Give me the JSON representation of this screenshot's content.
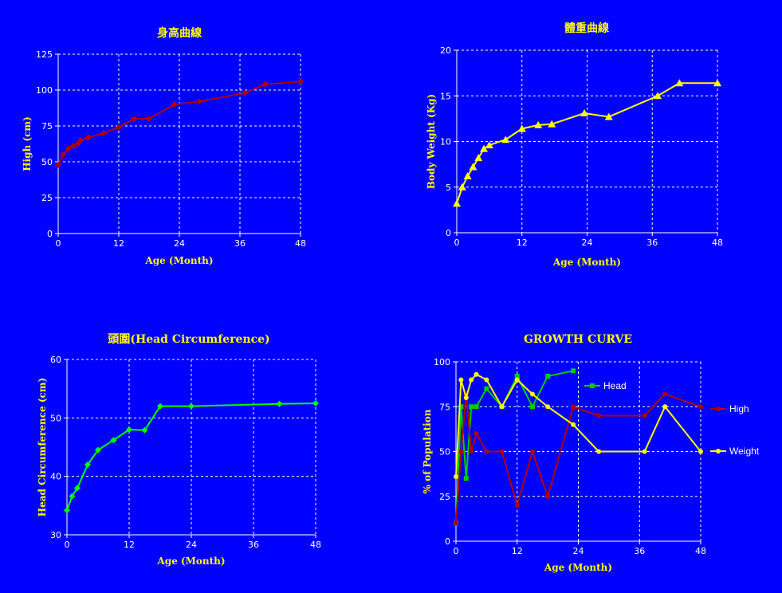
{
  "chart_data": [
    {
      "id": "height",
      "type": "line",
      "title": "身高曲線",
      "xlabel": "Age (Month)",
      "ylabel": "High (cm)",
      "xlim": [
        0,
        48
      ],
      "ylim": [
        0,
        125
      ],
      "xticks": [
        0,
        12,
        24,
        36,
        48
      ],
      "yticks": [
        0,
        25,
        50,
        75,
        100,
        125
      ],
      "grid": true,
      "color": "#b00000",
      "marker": "diamond",
      "x": [
        0,
        1,
        2,
        3,
        4,
        4.5,
        6,
        9,
        12,
        15,
        18,
        23,
        28,
        37,
        41,
        48
      ],
      "y": [
        48,
        55,
        59,
        61,
        63,
        65,
        67,
        70,
        74,
        80,
        80,
        90,
        92,
        98,
        104,
        106
      ]
    },
    {
      "id": "weight",
      "type": "line",
      "title": "體重曲線",
      "xlabel": "Age (Month)",
      "ylabel": "Body Weight (Kg)",
      "xlim": [
        0,
        48
      ],
      "ylim": [
        0,
        20
      ],
      "xticks": [
        0,
        12,
        24,
        36,
        48
      ],
      "yticks": [
        0,
        5,
        10,
        15,
        20
      ],
      "grid": true,
      "color": "#ffff00",
      "marker": "triangle",
      "x": [
        0,
        1,
        2,
        3,
        4,
        5,
        6,
        9,
        12,
        15,
        17.5,
        23.5,
        28,
        37,
        41,
        48
      ],
      "y": [
        3.2,
        5,
        6.2,
        7.2,
        8.2,
        9.2,
        9.6,
        10.2,
        11.4,
        11.8,
        11.9,
        13.1,
        12.7,
        15,
        16.4,
        16.4
      ]
    },
    {
      "id": "head",
      "type": "line",
      "title": "頭圍(Head Circumference)",
      "xlabel": "Age (Month)",
      "ylabel": "Head Circumference (cm)",
      "xlim": [
        0,
        48
      ],
      "ylim": [
        30,
        60
      ],
      "xticks": [
        0,
        12,
        24,
        36,
        48
      ],
      "yticks": [
        30,
        40,
        50,
        60
      ],
      "grid": true,
      "color": "#00ff00",
      "marker": "diamond",
      "x": [
        0,
        1,
        2,
        4,
        6,
        9,
        12,
        15,
        18,
        24,
        41,
        48
      ],
      "y": [
        34.2,
        36.6,
        38,
        42,
        44.5,
        46.2,
        48,
        47.9,
        52,
        52,
        52.4,
        52.5
      ]
    },
    {
      "id": "growth",
      "type": "line",
      "title": "GROWTH CURVE",
      "xlabel": "Age (Month)",
      "ylabel": "% of Population",
      "xlim": [
        0,
        48
      ],
      "ylim": [
        0,
        100
      ],
      "xticks": [
        0,
        12,
        24,
        36,
        48
      ],
      "yticks": [
        0,
        25,
        50,
        75,
        100
      ],
      "grid": true,
      "series": [
        {
          "name": "Head",
          "color": "#00cc00",
          "marker": "square",
          "x": [
            0,
            1,
            2,
            3,
            4,
            6,
            9,
            12,
            15,
            18,
            23
          ],
          "y": [
            10,
            75,
            35,
            75,
            75,
            85,
            75,
            92,
            75,
            92,
            95
          ]
        },
        {
          "name": "High",
          "color": "#b00000",
          "marker": "circle",
          "x": [
            0,
            1,
            2,
            3,
            4,
            6,
            9,
            12,
            15,
            18,
            23,
            28,
            37,
            41,
            48
          ],
          "y": [
            10,
            50,
            82,
            50,
            60,
            50,
            50,
            20,
            50,
            25,
            75,
            70,
            70,
            82,
            75
          ]
        },
        {
          "name": "Weight",
          "color": "#ffff00",
          "marker": "circle",
          "x": [
            0,
            1,
            2,
            3,
            4,
            6,
            9,
            12,
            15,
            18,
            23,
            28,
            37,
            41,
            48
          ],
          "y": [
            36,
            90,
            80,
            90,
            93,
            90,
            75,
            90,
            82,
            75,
            65,
            50,
            50,
            75,
            50
          ]
        }
      ]
    }
  ]
}
